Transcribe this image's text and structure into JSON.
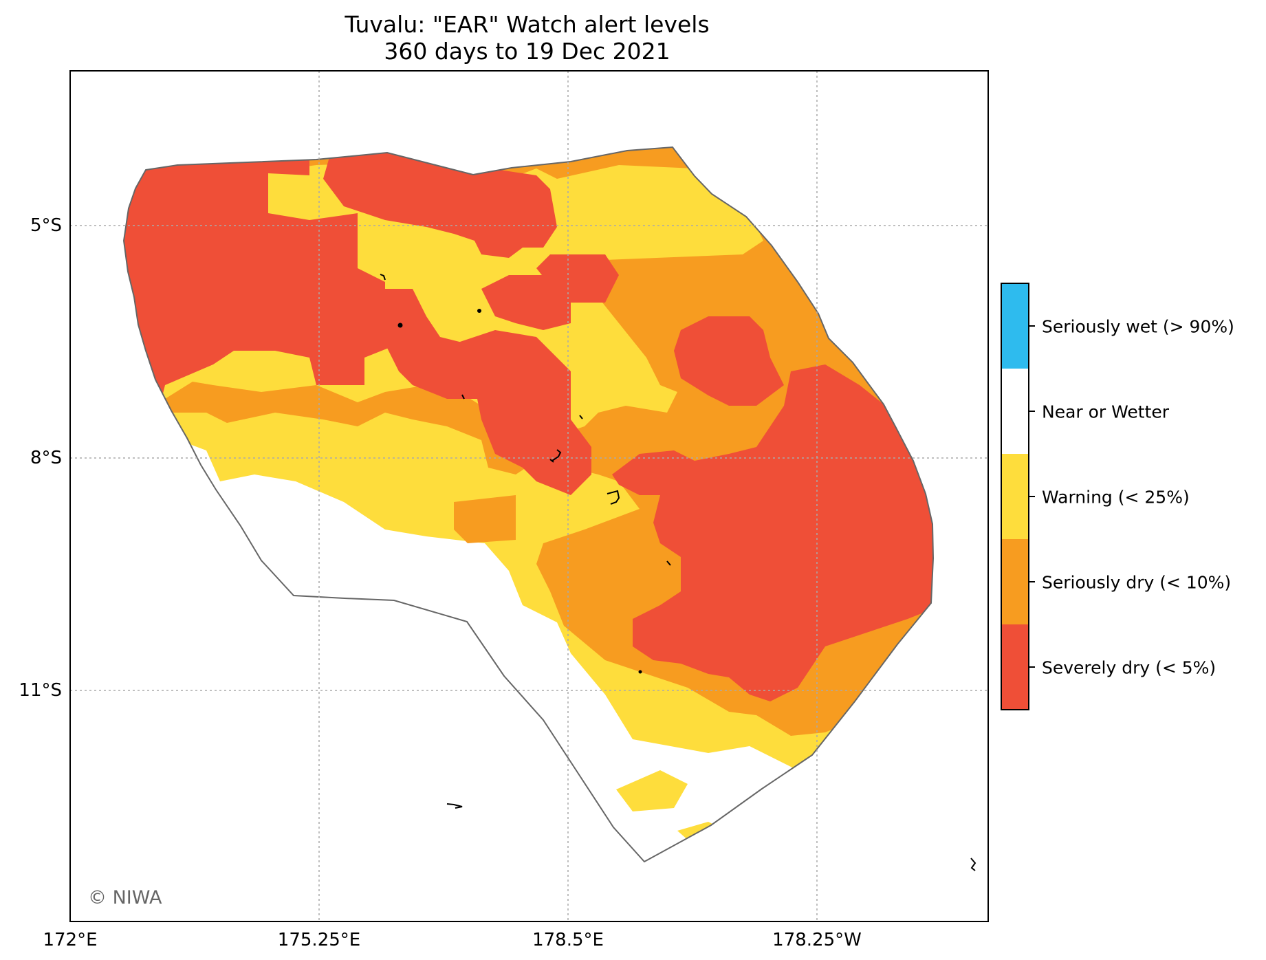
{
  "title": "Tuvalu: \"EAR\" Watch alert levels",
  "subtitle": "360 days to 19 Dec 2021",
  "x_ticks": [
    "172°E",
    "175.25°E",
    "178.5°E",
    "178.25°W"
  ],
  "y_ticks": [
    "5°S",
    "8°S",
    "11°S"
  ],
  "legend": [
    {
      "label": "Seriously wet (> 90%)",
      "color": "#2ebbee"
    },
    {
      "label": "Near or Wetter",
      "color": "#ffffff"
    },
    {
      "label": "Warning (< 25%)",
      "color": "#fedd3c"
    },
    {
      "label": "Seriously dry (< 10%)",
      "color": "#f79c20"
    },
    {
      "label": "Severely dry (< 5%)",
      "color": "#ef4f37"
    }
  ],
  "credit": "© NIWA",
  "colors": {
    "severely_dry": "#ef4f37",
    "seriously_dry": "#f79c20",
    "warning": "#fedd3c",
    "near_or_wetter": "#ffffff",
    "seriously_wet": "#2ebbee",
    "eez_outline": "#666666",
    "grid": "#aaaaaa"
  }
}
